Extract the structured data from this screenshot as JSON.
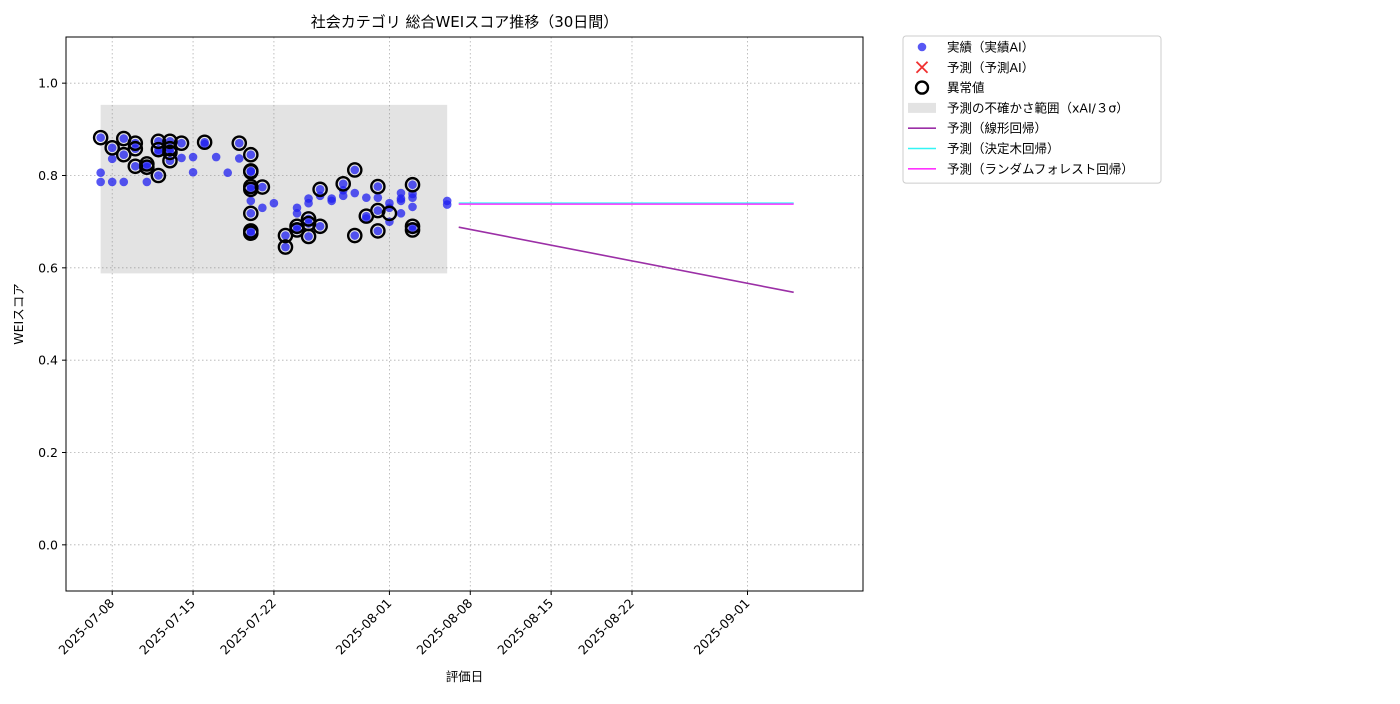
{
  "chart_data": {
    "type": "scatter",
    "title": "社会カテゴリ 総合WEIスコア推移（30日間）",
    "xlabel": "評価日",
    "ylabel": "WEIスコア",
    "ylim": [
      -0.1,
      1.1
    ],
    "xlim": [
      "2025-07-04",
      "2025-09-11"
    ],
    "y_ticks": [
      "0.0",
      "0.2",
      "0.4",
      "0.6",
      "0.8",
      "1.0"
    ],
    "x_ticks": [
      "2025-07-08",
      "2025-07-15",
      "2025-07-22",
      "2025-08-01",
      "2025-08-08",
      "2025-08-15",
      "2025-08-22",
      "2025-09-01"
    ],
    "grid": true,
    "legend_position": "outside-top-right",
    "legend": [
      {
        "label": "実績（実績AI）",
        "kind": "dot",
        "color": "#1f1ff0"
      },
      {
        "label": "予測（予測AI）",
        "kind": "x",
        "color": "#f03030"
      },
      {
        "label": "異常値",
        "kind": "ring",
        "color": "#000000"
      },
      {
        "label": "予測の不確かさ範囲（xAI/３σ）",
        "kind": "band",
        "color": "#d9d9d9"
      },
      {
        "label": "予測（線形回帰）",
        "kind": "line",
        "color": "#9b2fa6"
      },
      {
        "label": "予測（決定木回帰）",
        "kind": "line",
        "color": "#33f5f5"
      },
      {
        "label": "予測（ランダムフォレスト回帰）",
        "kind": "line",
        "color": "#ff33ff"
      }
    ],
    "uncertainty_band": {
      "x": [
        "2025-07-07",
        "2025-08-06"
      ],
      "y": [
        0.588,
        0.953
      ]
    },
    "series": [
      {
        "name": "実績（実績AI）",
        "color": "#1f1ff0",
        "points": [
          [
            "2025-07-07",
            0.882
          ],
          [
            "2025-07-07",
            0.806
          ],
          [
            "2025-07-07",
            0.786
          ],
          [
            "2025-07-08",
            0.786
          ],
          [
            "2025-07-08",
            0.86
          ],
          [
            "2025-07-08",
            0.836
          ],
          [
            "2025-07-09",
            0.786
          ],
          [
            "2025-07-09",
            0.88
          ],
          [
            "2025-07-09",
            0.845
          ],
          [
            "2025-07-10",
            0.87
          ],
          [
            "2025-07-10",
            0.858
          ],
          [
            "2025-07-10",
            0.82
          ],
          [
            "2025-07-11",
            0.786
          ],
          [
            "2025-07-11",
            0.818
          ],
          [
            "2025-07-11",
            0.825
          ],
          [
            "2025-07-12",
            0.856
          ],
          [
            "2025-07-12",
            0.85
          ],
          [
            "2025-07-12",
            0.8
          ],
          [
            "2025-07-12",
            0.874
          ],
          [
            "2025-07-13",
            0.85
          ],
          [
            "2025-07-13",
            0.858
          ],
          [
            "2025-07-13",
            0.832
          ],
          [
            "2025-07-13",
            0.874
          ],
          [
            "2025-07-14",
            0.838
          ],
          [
            "2025-07-14",
            0.87
          ],
          [
            "2025-07-15",
            0.84
          ],
          [
            "2025-07-15",
            0.807
          ],
          [
            "2025-07-16",
            0.872
          ],
          [
            "2025-07-16",
            0.868
          ],
          [
            "2025-07-17",
            0.84
          ],
          [
            "2025-07-18",
            0.806
          ],
          [
            "2025-07-19",
            0.87
          ],
          [
            "2025-07-19",
            0.837
          ],
          [
            "2025-07-20",
            0.845
          ],
          [
            "2025-07-20",
            0.81
          ],
          [
            "2025-07-20",
            0.776
          ],
          [
            "2025-07-20",
            0.745
          ],
          [
            "2025-07-20",
            0.718
          ],
          [
            "2025-07-20",
            0.68
          ],
          [
            "2025-07-20",
            0.675
          ],
          [
            "2025-07-20",
            0.77
          ],
          [
            "2025-07-20",
            0.808
          ],
          [
            "2025-07-21",
            0.775
          ],
          [
            "2025-07-21",
            0.73
          ],
          [
            "2025-07-22",
            0.74
          ],
          [
            "2025-07-23",
            0.67
          ],
          [
            "2025-07-23",
            0.645
          ],
          [
            "2025-07-24",
            0.73
          ],
          [
            "2025-07-24",
            0.718
          ],
          [
            "2025-07-24",
            0.69
          ],
          [
            "2025-07-24",
            0.682
          ],
          [
            "2025-07-25",
            0.75
          ],
          [
            "2025-07-25",
            0.74
          ],
          [
            "2025-07-25",
            0.706
          ],
          [
            "2025-07-25",
            0.696
          ],
          [
            "2025-07-25",
            0.668
          ],
          [
            "2025-07-26",
            0.77
          ],
          [
            "2025-07-26",
            0.756
          ],
          [
            "2025-07-26",
            0.69
          ],
          [
            "2025-07-27",
            0.75
          ],
          [
            "2025-07-27",
            0.745
          ],
          [
            "2025-07-28",
            0.782
          ],
          [
            "2025-07-28",
            0.768
          ],
          [
            "2025-07-28",
            0.756
          ],
          [
            "2025-07-29",
            0.812
          ],
          [
            "2025-07-29",
            0.762
          ],
          [
            "2025-07-29",
            0.67
          ],
          [
            "2025-07-30",
            0.752
          ],
          [
            "2025-07-30",
            0.712
          ],
          [
            "2025-07-30",
            0.707
          ],
          [
            "2025-07-31",
            0.776
          ],
          [
            "2025-07-31",
            0.752
          ],
          [
            "2025-07-31",
            0.724
          ],
          [
            "2025-07-31",
            0.68
          ],
          [
            "2025-08-01",
            0.74
          ],
          [
            "2025-08-01",
            0.7
          ],
          [
            "2025-08-01",
            0.73
          ],
          [
            "2025-08-02",
            0.762
          ],
          [
            "2025-08-02",
            0.75
          ],
          [
            "2025-08-02",
            0.718
          ],
          [
            "2025-08-02",
            0.745
          ],
          [
            "2025-08-03",
            0.78
          ],
          [
            "2025-08-03",
            0.76
          ],
          [
            "2025-08-03",
            0.752
          ],
          [
            "2025-08-03",
            0.732
          ],
          [
            "2025-08-03",
            0.69
          ],
          [
            "2025-08-03",
            0.682
          ],
          [
            "2025-08-06",
            0.745
          ],
          [
            "2025-08-06",
            0.737
          ]
        ]
      },
      {
        "name": "異常値",
        "color": "#000000",
        "points": [
          [
            "2025-07-07",
            0.882
          ],
          [
            "2025-07-08",
            0.86
          ],
          [
            "2025-07-09",
            0.88
          ],
          [
            "2025-07-09",
            0.845
          ],
          [
            "2025-07-10",
            0.87
          ],
          [
            "2025-07-10",
            0.858
          ],
          [
            "2025-07-10",
            0.82
          ],
          [
            "2025-07-11",
            0.818
          ],
          [
            "2025-07-11",
            0.825
          ],
          [
            "2025-07-12",
            0.856
          ],
          [
            "2025-07-12",
            0.8
          ],
          [
            "2025-07-12",
            0.874
          ],
          [
            "2025-07-13",
            0.85
          ],
          [
            "2025-07-13",
            0.858
          ],
          [
            "2025-07-13",
            0.832
          ],
          [
            "2025-07-13",
            0.874
          ],
          [
            "2025-07-14",
            0.87
          ],
          [
            "2025-07-16",
            0.872
          ],
          [
            "2025-07-19",
            0.87
          ],
          [
            "2025-07-20",
            0.845
          ],
          [
            "2025-07-20",
            0.81
          ],
          [
            "2025-07-20",
            0.776
          ],
          [
            "2025-07-20",
            0.77
          ],
          [
            "2025-07-20",
            0.718
          ],
          [
            "2025-07-20",
            0.68
          ],
          [
            "2025-07-20",
            0.675
          ],
          [
            "2025-07-20",
            0.808
          ],
          [
            "2025-07-21",
            0.775
          ],
          [
            "2025-07-23",
            0.67
          ],
          [
            "2025-07-23",
            0.645
          ],
          [
            "2025-07-24",
            0.682
          ],
          [
            "2025-07-24",
            0.69
          ],
          [
            "2025-07-25",
            0.706
          ],
          [
            "2025-07-25",
            0.696
          ],
          [
            "2025-07-25",
            0.668
          ],
          [
            "2025-07-26",
            0.77
          ],
          [
            "2025-07-26",
            0.69
          ],
          [
            "2025-07-28",
            0.782
          ],
          [
            "2025-07-29",
            0.812
          ],
          [
            "2025-07-29",
            0.67
          ],
          [
            "2025-07-30",
            0.712
          ],
          [
            "2025-07-31",
            0.776
          ],
          [
            "2025-07-31",
            0.724
          ],
          [
            "2025-07-31",
            0.68
          ],
          [
            "2025-08-01",
            0.718
          ],
          [
            "2025-08-03",
            0.78
          ],
          [
            "2025-08-03",
            0.69
          ],
          [
            "2025-08-03",
            0.682
          ]
        ]
      },
      {
        "name": "予測（線形回帰）",
        "color": "#9b2fa6",
        "points": [
          [
            "2025-08-07",
            0.688
          ],
          [
            "2025-09-05",
            0.547
          ]
        ]
      },
      {
        "name": "予測（決定木回帰）",
        "color": "#33f5f5",
        "points": [
          [
            "2025-08-07",
            0.74
          ],
          [
            "2025-09-05",
            0.74
          ]
        ]
      },
      {
        "name": "予測（ランダムフォレスト回帰）",
        "color": "#ff33ff",
        "points": [
          [
            "2025-08-07",
            0.738
          ],
          [
            "2025-09-05",
            0.738
          ]
        ]
      }
    ]
  }
}
